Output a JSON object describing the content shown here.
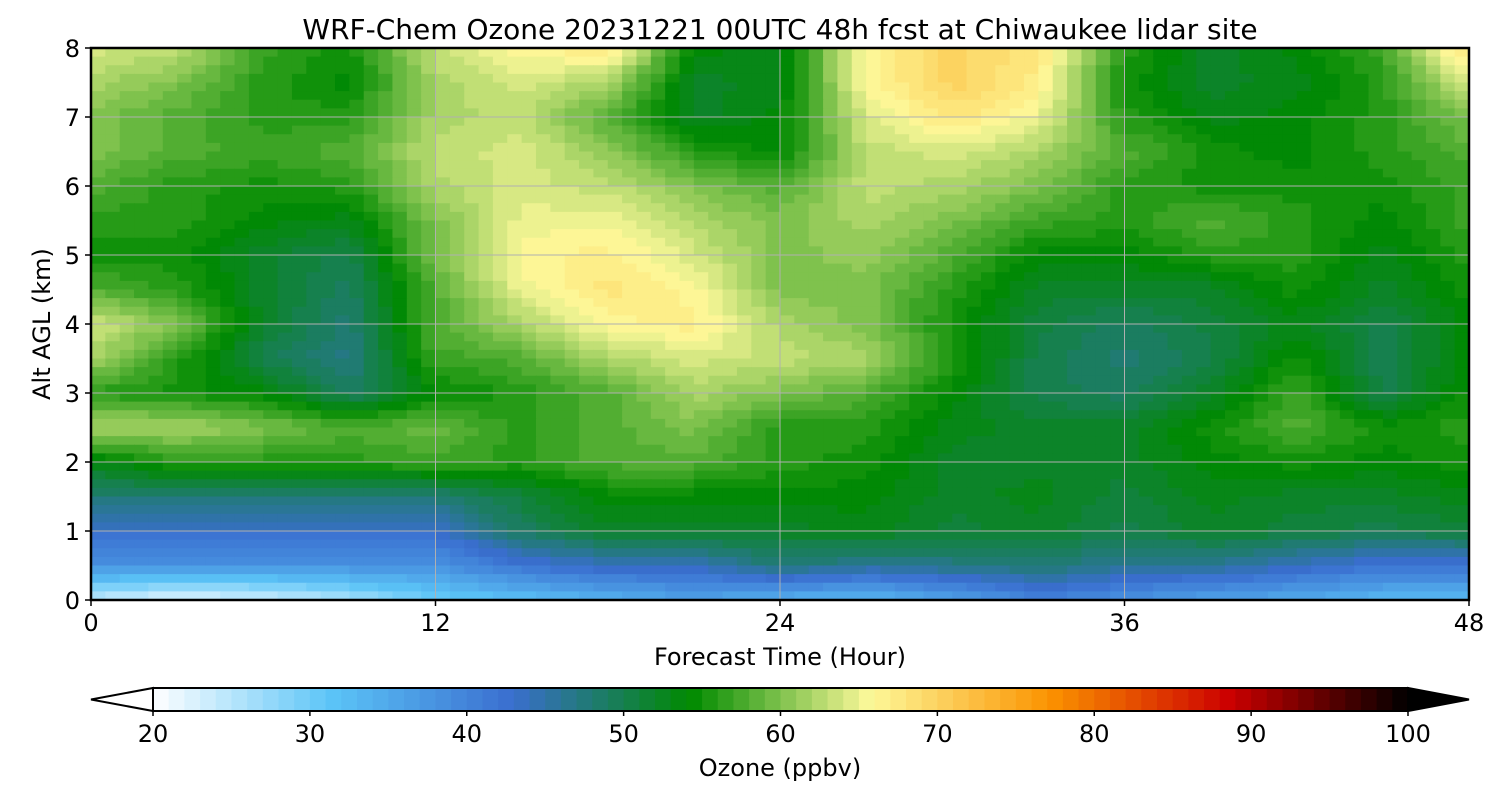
{
  "chart_data": {
    "type": "heatmap",
    "title": "WRF-Chem Ozone  20231221 00UTC 48h fcst at Chiwaukee lidar site",
    "xlabel": "Forecast Time (Hour)",
    "ylabel": "Alt AGL (km)",
    "xlim": [
      0,
      48
    ],
    "ylim": [
      0,
      8
    ],
    "x_ticks": [
      0,
      12,
      24,
      36,
      48
    ],
    "y_ticks": [
      0,
      1,
      2,
      3,
      4,
      5,
      6,
      7,
      8
    ],
    "grid": true,
    "x": [
      0,
      3,
      6,
      9,
      12,
      15,
      18,
      21,
      24,
      27,
      30,
      33,
      36,
      39,
      42,
      45,
      48
    ],
    "y": [
      0,
      0.5,
      1,
      1.5,
      2,
      2.5,
      3,
      3.5,
      4,
      4.5,
      5,
      5.5,
      6,
      6.5,
      7,
      7.5,
      8
    ],
    "z": [
      [
        24,
        22,
        23,
        26,
        30,
        32,
        34,
        36,
        34,
        33,
        36,
        40,
        38,
        36,
        35,
        33,
        33
      ],
      [
        38,
        38,
        38,
        38,
        38,
        42,
        44,
        44,
        48,
        46,
        47,
        48,
        46,
        46,
        44,
        42,
        42
      ],
      [
        43,
        43,
        43,
        43,
        43,
        49,
        52,
        52,
        52,
        53,
        51,
        52,
        50,
        52,
        51,
        50,
        51
      ],
      [
        48,
        48,
        48,
        48,
        48,
        51,
        54,
        54,
        54,
        54,
        52,
        53,
        51,
        53,
        52,
        52,
        53
      ],
      [
        53,
        56,
        56,
        56,
        57,
        56,
        58,
        58,
        56,
        55,
        52,
        52,
        52,
        54,
        55,
        54,
        55
      ],
      [
        62,
        62,
        60,
        58,
        59,
        56,
        58,
        60,
        56,
        56,
        53,
        52,
        52,
        55,
        58,
        55,
        56
      ],
      [
        56,
        55,
        54,
        49,
        54,
        56,
        58,
        62,
        60,
        58,
        54,
        50,
        49,
        52,
        57,
        50,
        55
      ],
      [
        62,
        56,
        50,
        47,
        57,
        58,
        62,
        64,
        63,
        62,
        56,
        50,
        48,
        50,
        55,
        50,
        54
      ],
      [
        64,
        60,
        52,
        48,
        58,
        62,
        66,
        67,
        62,
        60,
        55,
        51,
        49,
        51,
        53,
        50,
        54
      ],
      [
        58,
        56,
        52,
        49,
        58,
        65,
        68,
        66,
        60,
        60,
        56,
        52,
        52,
        52,
        55,
        52,
        55
      ],
      [
        55,
        55,
        52,
        50,
        60,
        66,
        67,
        64,
        60,
        61,
        58,
        54,
        54,
        56,
        56,
        53,
        56
      ],
      [
        56,
        56,
        54,
        53,
        60,
        65,
        65,
        62,
        60,
        62,
        60,
        57,
        56,
        58,
        56,
        54,
        57
      ],
      [
        58,
        56,
        55,
        56,
        62,
        64,
        63,
        60,
        58,
        63,
        62,
        60,
        56,
        55,
        55,
        55,
        57
      ],
      [
        60,
        58,
        57,
        58,
        63,
        64,
        61,
        56,
        54,
        63,
        64,
        62,
        58,
        55,
        54,
        56,
        58
      ],
      [
        60,
        58,
        56,
        56,
        62,
        63,
        58,
        52,
        54,
        64,
        68,
        65,
        56,
        53,
        54,
        56,
        60
      ],
      [
        62,
        60,
        56,
        54,
        62,
        64,
        62,
        52,
        53,
        66,
        70,
        67,
        55,
        52,
        53,
        56,
        64
      ],
      [
        64,
        63,
        57,
        55,
        63,
        66,
        68,
        54,
        53,
        66,
        70,
        68,
        56,
        52,
        54,
        57,
        69
      ]
    ],
    "colorbar": {
      "label": "Ozone  (ppbv)",
      "min": 20,
      "max": 100,
      "ticks": [
        20,
        30,
        40,
        50,
        60,
        70,
        80,
        90,
        100
      ],
      "extend": "both",
      "colors": [
        "#ffffff",
        "#5bc4f7",
        "#3a6ecf",
        "#008a00",
        "#fdf99a",
        "#fb9300",
        "#cc0000",
        "#000000"
      ]
    }
  }
}
